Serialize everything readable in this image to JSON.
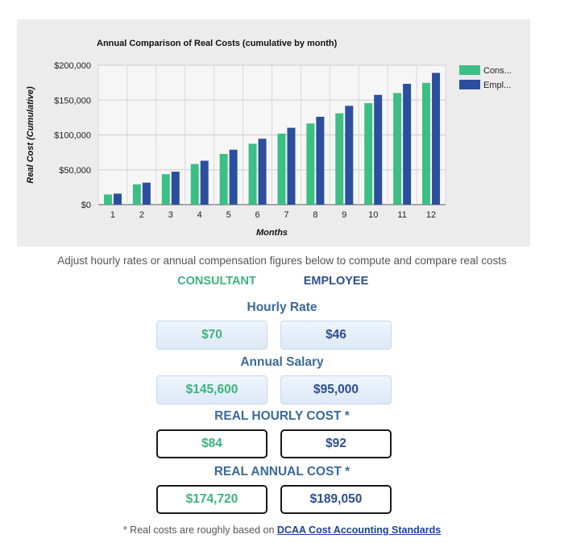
{
  "chart_data": {
    "type": "bar",
    "title": "Annual Comparison of Real Costs (cumulative by month)",
    "xlabel": "Months",
    "ylabel": "Real Cost (Cumulative)",
    "categories": [
      "1",
      "2",
      "3",
      "4",
      "5",
      "6",
      "7",
      "8",
      "9",
      "10",
      "11",
      "12"
    ],
    "ylim": [
      0,
      200000
    ],
    "yticks": [
      "$0",
      "$50,000",
      "$100,000",
      "$150,000",
      "$200,000"
    ],
    "ytick_values": [
      0,
      50000,
      100000,
      150000,
      200000
    ],
    "grid": true,
    "legend_position": "right",
    "series": [
      {
        "name": "Cons...",
        "color": "#3cbf84",
        "values": [
          14560,
          29120,
          43680,
          58240,
          72800,
          87360,
          101920,
          116480,
          131040,
          145600,
          160160,
          174720
        ]
      },
      {
        "name": "Empl...",
        "color": "#2b4f9e",
        "values": [
          15754,
          31508,
          47263,
          63017,
          78771,
          94525,
          110279,
          126033,
          141788,
          157542,
          173296,
          189050
        ]
      }
    ]
  },
  "caption": "Adjust hourly rates or annual compensation figures below to compute and compare real costs",
  "columns": {
    "consultant": "CONSULTANT",
    "employee": "EMPLOYEE"
  },
  "hourly": {
    "title": "Hourly Rate",
    "consultant": "$70",
    "employee": "$46"
  },
  "annual": {
    "title": "Annual Salary",
    "consultant": "$145,600",
    "employee": "$95,000"
  },
  "real_hourly": {
    "title": "REAL HOURLY COST *",
    "consultant": "$84",
    "employee": "$92"
  },
  "real_annual": {
    "title": "REAL ANNUAL COST *",
    "consultant": "$174,720",
    "employee": "$189,050"
  },
  "footnote": {
    "prefix": "* Real costs are roughly based on ",
    "link": "DCAA Cost Accounting Standards"
  },
  "colors": {
    "green": "#3cb37d",
    "blue": "#2d4e8f",
    "heading": "#3b6a99"
  }
}
